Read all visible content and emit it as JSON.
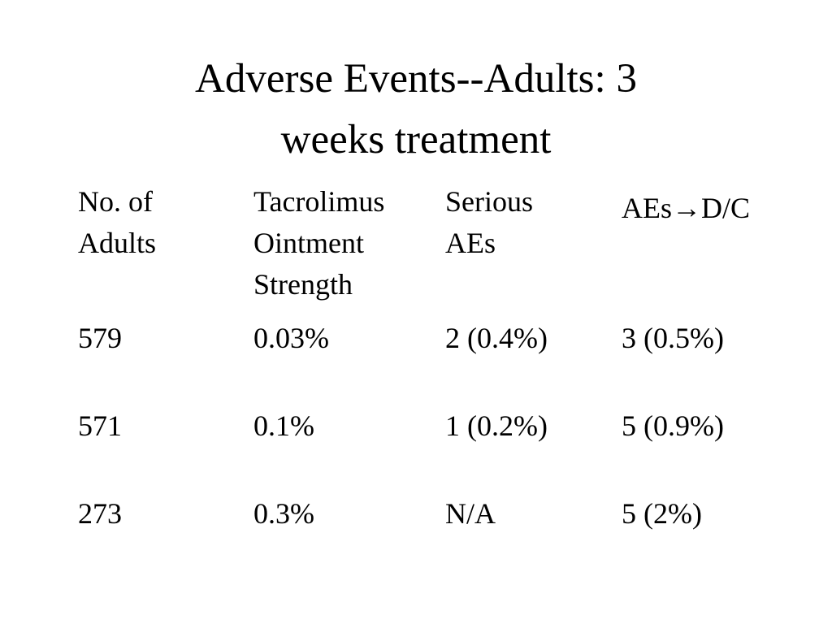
{
  "slide": {
    "title_lines": [
      "Adverse Events--Adults:  3",
      "weeks treatment"
    ]
  },
  "table": {
    "headers": [
      [
        "No. of",
        "Adults"
      ],
      [
        "Tacrolimus",
        "Ointment",
        "Strength"
      ],
      [
        "Serious",
        "AEs"
      ],
      [
        "AEs→D/C"
      ]
    ],
    "rows": [
      [
        "579",
        "0.03%",
        "2 (0.4%)",
        "3 (0.5%)"
      ],
      [
        "571",
        "0.1%",
        "1 (0.2%)",
        "5 (0.9%)"
      ],
      [
        "273",
        "0.3%",
        "N/A",
        "5 (2%)"
      ]
    ]
  }
}
